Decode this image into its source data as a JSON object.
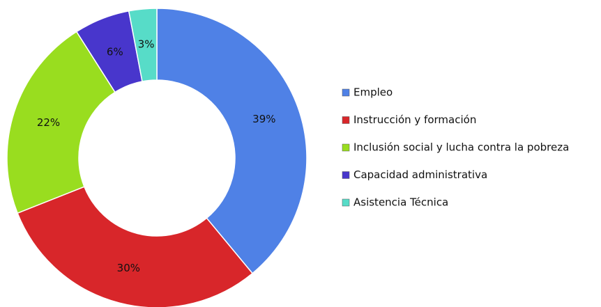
{
  "chart_data": {
    "type": "pie",
    "categories": [
      "Empleo",
      "Instrucción y formación",
      "Inclusión social y lucha contra la pobreza",
      "Capacidad administrativa",
      "Asistencia Técnica"
    ],
    "values": [
      39,
      30,
      22,
      6,
      3
    ],
    "value_labels": [
      "39%",
      "30%",
      "22%",
      "6%",
      "3%"
    ],
    "colors": [
      "#4f81e6",
      "#d8262a",
      "#99dd1f",
      "#4836cc",
      "#57dcc8"
    ],
    "legend": "right"
  }
}
